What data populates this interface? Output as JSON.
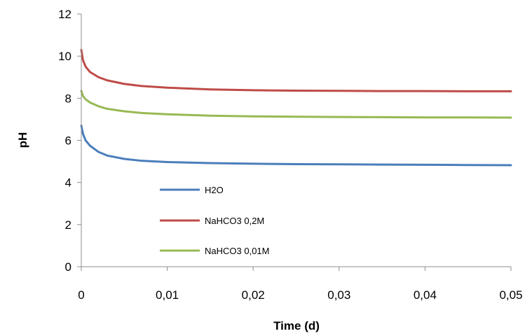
{
  "chart_data": {
    "type": "line",
    "title": "",
    "xlabel": "Time (d)",
    "ylabel": "pH",
    "xlim": [
      0,
      0.05
    ],
    "ylim": [
      0,
      12
    ],
    "x_ticks": [
      0,
      0.01,
      0.02,
      0.03,
      0.04,
      0.05
    ],
    "x_tick_labels": [
      "0",
      "0,01",
      "0,02",
      "0,03",
      "0,04",
      "0,05"
    ],
    "y_ticks": [
      0,
      2,
      4,
      6,
      8,
      10,
      12
    ],
    "y_tick_labels": [
      "0",
      "2",
      "4",
      "6",
      "8",
      "10",
      "12"
    ],
    "grid": false,
    "legend_position": "bottom-left",
    "series": [
      {
        "name": "H2O",
        "color": "#4a7ebb",
        "x": [
          0,
          0.0002,
          0.0005,
          0.001,
          0.002,
          0.003,
          0.005,
          0.007,
          0.01,
          0.015,
          0.02,
          0.025,
          0.03,
          0.035,
          0.04,
          0.045,
          0.05
        ],
        "y": [
          6.7,
          6.3,
          6.0,
          5.75,
          5.45,
          5.28,
          5.12,
          5.03,
          4.97,
          4.92,
          4.89,
          4.87,
          4.86,
          4.85,
          4.84,
          4.83,
          4.82
        ]
      },
      {
        "name": "NaHCO3 0,2M",
        "color": "#be4b48",
        "x": [
          0,
          0.0002,
          0.0005,
          0.001,
          0.002,
          0.003,
          0.005,
          0.007,
          0.01,
          0.015,
          0.02,
          0.025,
          0.03,
          0.035,
          0.04,
          0.045,
          0.05
        ],
        "y": [
          10.3,
          9.8,
          9.5,
          9.25,
          9.0,
          8.85,
          8.68,
          8.58,
          8.5,
          8.42,
          8.38,
          8.36,
          8.35,
          8.34,
          8.34,
          8.33,
          8.33
        ]
      },
      {
        "name": "NaHCO3 0,01M",
        "color": "#98b954",
        "x": [
          0,
          0.0002,
          0.0005,
          0.001,
          0.002,
          0.003,
          0.005,
          0.007,
          0.01,
          0.015,
          0.02,
          0.025,
          0.03,
          0.035,
          0.04,
          0.045,
          0.05
        ],
        "y": [
          8.35,
          8.1,
          7.95,
          7.8,
          7.62,
          7.5,
          7.38,
          7.3,
          7.24,
          7.17,
          7.14,
          7.12,
          7.11,
          7.1,
          7.09,
          7.09,
          7.08
        ]
      }
    ]
  }
}
